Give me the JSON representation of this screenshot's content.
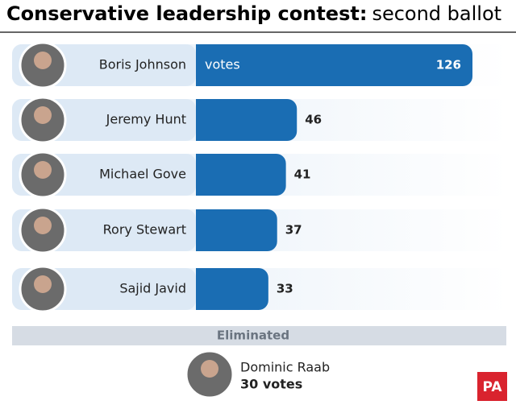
{
  "chart_data": {
    "type": "bar",
    "orientation": "horizontal",
    "title": "Conservative leadership contest:",
    "subtitle": "second ballot",
    "categories": [
      "Boris Johnson",
      "Jeremy Hunt",
      "Michael Gove",
      "Rory Stewart",
      "Sajid Javid"
    ],
    "values": [
      126,
      46,
      41,
      37,
      33
    ],
    "color": "#1a6db3",
    "bar_label": "votes",
    "eliminated": {
      "label": "Eliminated",
      "name": "Dominic Raab",
      "value": 30,
      "value_label": "30 votes"
    },
    "logo": "PA"
  }
}
